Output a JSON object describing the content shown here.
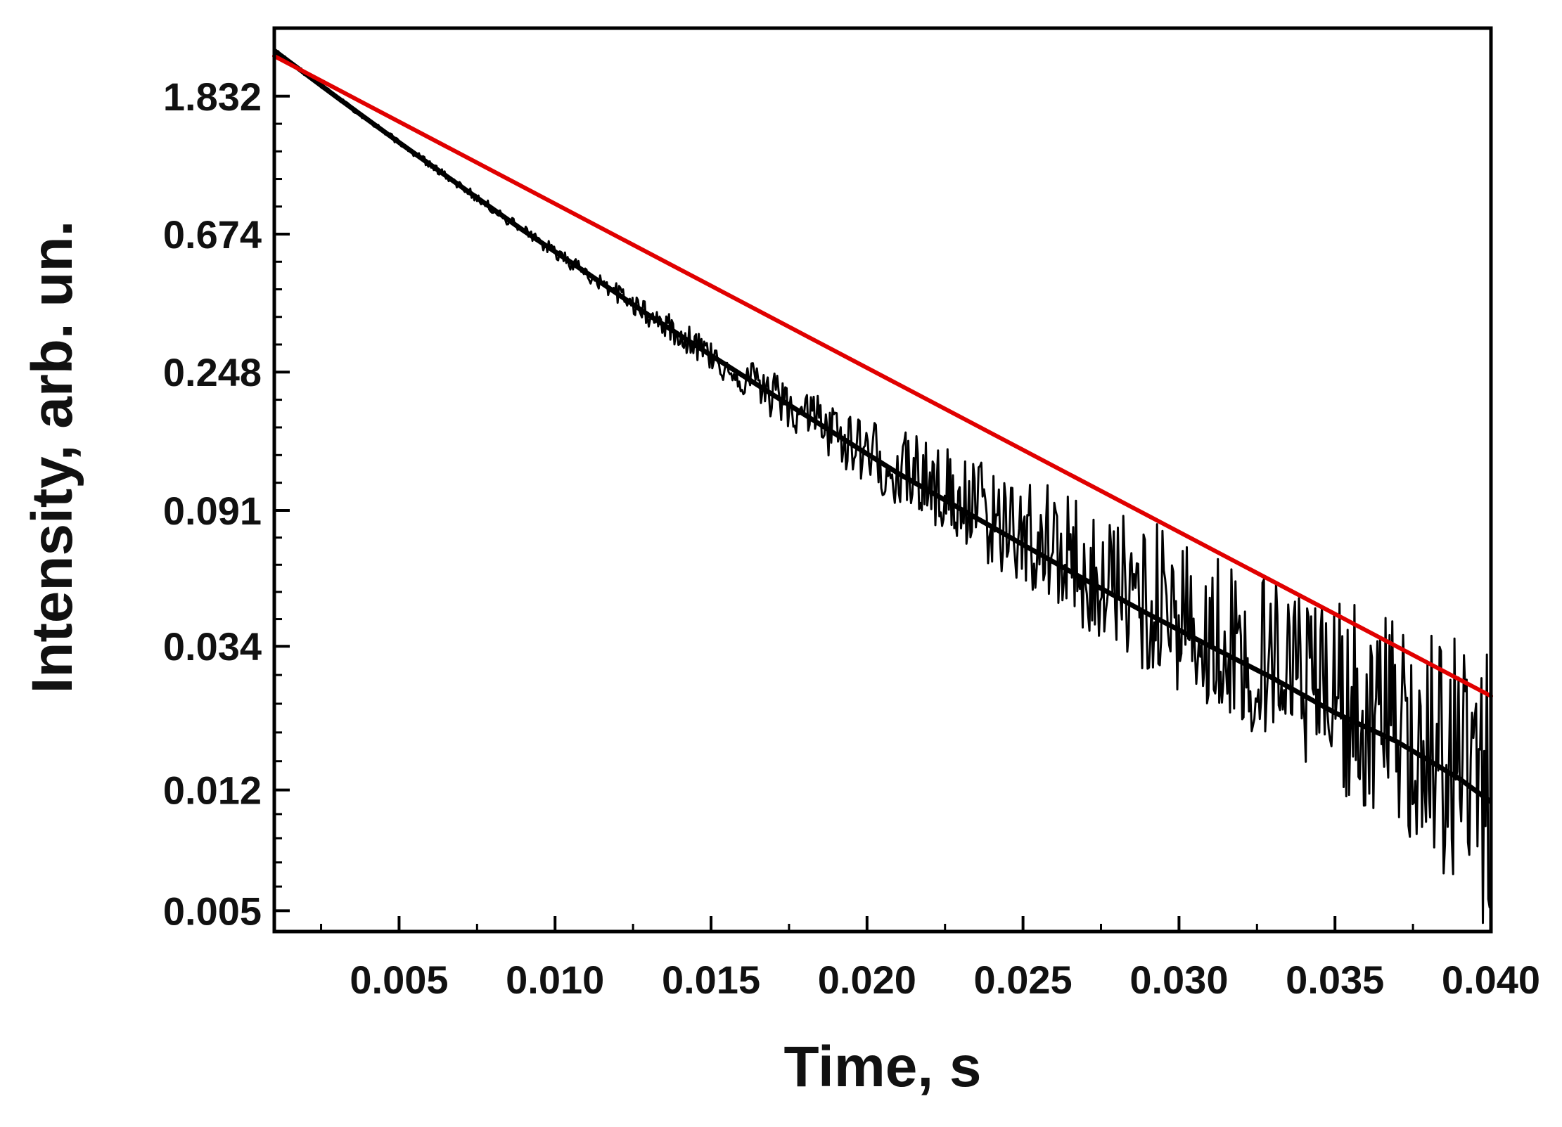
{
  "chart_data": {
    "type": "line",
    "title": "",
    "xlabel": "Time, s",
    "ylabel": "Intensity, arb. un.",
    "x_scale": "linear",
    "y_scale": "log",
    "xlim": [
      0.001,
      0.04
    ],
    "ylim": [
      0.0043,
      3.0
    ],
    "x_ticks": [
      {
        "value": 0.005,
        "label": "0.005"
      },
      {
        "value": 0.01,
        "label": "0.010"
      },
      {
        "value": 0.015,
        "label": "0.015"
      },
      {
        "value": 0.02,
        "label": "0.020"
      },
      {
        "value": 0.025,
        "label": "0.025"
      },
      {
        "value": 0.03,
        "label": "0.030"
      },
      {
        "value": 0.035,
        "label": "0.035"
      },
      {
        "value": 0.04,
        "label": "0.040"
      }
    ],
    "y_ticks": [
      {
        "value": 1.832,
        "label": "1.832"
      },
      {
        "value": 0.674,
        "label": "0.674"
      },
      {
        "value": 0.248,
        "label": "0.248"
      },
      {
        "value": 0.091,
        "label": "0.091"
      },
      {
        "value": 0.034,
        "label": "0.034"
      },
      {
        "value": 0.012,
        "label": "0.012"
      },
      {
        "value": 0.005,
        "label": "0.005"
      }
    ],
    "grid": false,
    "legend": "none",
    "series": [
      {
        "role": "measured decay",
        "color": "#000000",
        "x": [
          0.001,
          0.003,
          0.005,
          0.007,
          0.009,
          0.011,
          0.013,
          0.015,
          0.017,
          0.019,
          0.021,
          0.023,
          0.025,
          0.027,
          0.029,
          0.031,
          0.033,
          0.035,
          0.037,
          0.039,
          0.04
        ],
        "y": [
          2.55,
          1.82,
          1.31,
          0.95,
          0.69,
          0.51,
          0.375,
          0.28,
          0.21,
          0.158,
          0.119,
          0.092,
          0.071,
          0.055,
          0.043,
          0.034,
          0.027,
          0.021,
          0.017,
          0.013,
          0.011
        ],
        "y_upper": [
          2.6,
          1.85,
          1.34,
          0.98,
          0.72,
          0.54,
          0.41,
          0.32,
          0.25,
          0.2,
          0.165,
          0.14,
          0.12,
          0.1,
          0.085,
          0.07,
          0.058,
          0.048,
          0.042,
          0.036,
          0.034
        ],
        "y_lower": [
          2.5,
          1.79,
          1.28,
          0.92,
          0.66,
          0.48,
          0.345,
          0.25,
          0.175,
          0.128,
          0.093,
          0.07,
          0.052,
          0.038,
          0.028,
          0.021,
          0.016,
          0.012,
          0.009,
          0.0055,
          0.004
        ]
      },
      {
        "role": "exponential fit",
        "color": "#e00000",
        "x": [
          0.001,
          0.04
        ],
        "y": [
          2.45,
          0.0237
        ]
      }
    ]
  }
}
